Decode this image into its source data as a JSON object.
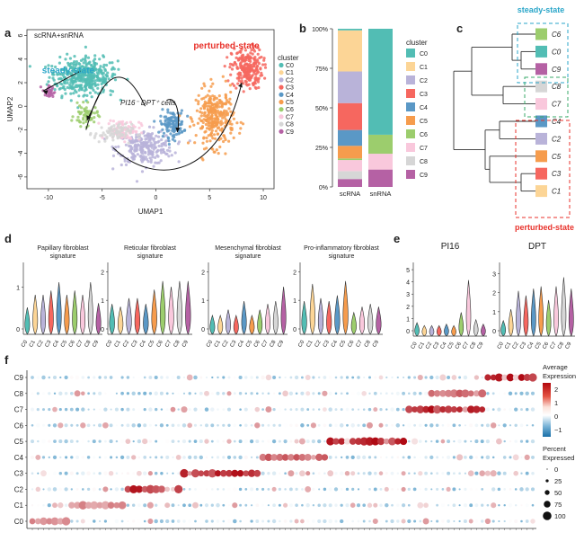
{
  "panels": {
    "a": "a",
    "b": "b",
    "c": "c",
    "d": "d",
    "e": "e",
    "f": "f"
  },
  "colors": {
    "C0": "#52bdb4",
    "C1": "#fcd596",
    "C2": "#b9b3d9",
    "C3": "#f6675f",
    "C4": "#5a98c6",
    "C5": "#f69c4d",
    "C6": "#9ccd6d",
    "C7": "#f9c8dc",
    "C8": "#d6d6d6",
    "C9": "#b561a4"
  },
  "clusters": [
    "C0",
    "C1",
    "C2",
    "C3",
    "C4",
    "C5",
    "C6",
    "C7",
    "C8",
    "C9"
  ],
  "umap": {
    "title": "scRNA+snRNA",
    "steady_label": "steady-state",
    "perturbed_label": "perturbed-state",
    "annotation": "PI16⁻ DPT⁺ cells",
    "xlabel": "UMAP1",
    "ylabel": "UMAP2",
    "xticks": [
      "-10",
      "-5",
      "0",
      "5",
      "10"
    ],
    "yticks": [
      "6",
      "4",
      "2",
      "0",
      "-2",
      "-4",
      "-6"
    ],
    "legend_title": "cluster"
  },
  "tree": {
    "steady_label": "steady-state",
    "perturbed_label": "perturbed-state",
    "order": [
      "C6",
      "C0",
      "C9",
      "C8",
      "C7",
      "C4",
      "C2",
      "C5",
      "C3",
      "C1"
    ]
  },
  "violin_d": {
    "titles": [
      "Papillary fibroblast signature",
      "Reticular fibroblast signature",
      "Mesenchymal fibroblast signature",
      "Pro-inflammatory fibroblast signature"
    ],
    "yticks": [
      [
        "1",
        "0"
      ],
      [
        "2",
        "1",
        "0"
      ],
      [
        "2",
        "1",
        "0"
      ],
      [
        "2",
        "1",
        "0"
      ]
    ]
  },
  "violin_e": {
    "titles": [
      "PI16",
      "DPT"
    ],
    "yticks": [
      [
        "5",
        "4",
        "3",
        "2",
        "1",
        "0"
      ],
      [
        "3",
        "2",
        "1",
        "0"
      ]
    ]
  },
  "dot_legend": {
    "avg_title": "Average Expression",
    "avg_ticks": [
      "2",
      "1",
      "0",
      "−1"
    ],
    "pct_title": "Percent Expressed",
    "pct_ticks": [
      "0",
      "25",
      "50",
      "75",
      "100"
    ]
  },
  "chart_data": [
    {
      "type": "scatter",
      "title": "scRNA+snRNA",
      "xlabel": "UMAP1",
      "ylabel": "UMAP2",
      "xlim": [
        -12,
        11
      ],
      "ylim": [
        -7,
        6.5
      ],
      "series": [
        {
          "name": "C0",
          "x": [
            -7.5,
            -6
          ],
          "y": [
            2.5,
            2.5
          ]
        },
        {
          "name": "C2",
          "x": [
            -1
          ],
          "y": [
            -3.5
          ]
        },
        {
          "name": "C3",
          "x": [
            8.5
          ],
          "y": [
            3.2
          ]
        },
        {
          "name": "C4",
          "x": [
            1.5
          ],
          "y": [
            -1.5
          ]
        },
        {
          "name": "C5",
          "x": [
            5.5
          ],
          "y": [
            -1
          ]
        },
        {
          "name": "C6",
          "x": [
            -6.5
          ],
          "y": [
            -0.8
          ]
        },
        {
          "name": "C7",
          "x": [
            -3
          ],
          "y": [
            -2
          ]
        },
        {
          "name": "C8",
          "x": [
            -4
          ],
          "y": [
            -2.3
          ]
        },
        {
          "name": "C9",
          "x": [
            -10
          ],
          "y": [
            1.2
          ]
        }
      ]
    },
    {
      "type": "bar",
      "categories": [
        "scRNA",
        "snRNA"
      ],
      "ylabel": "",
      "yticks": [
        "0%",
        "25%",
        "50%",
        "75%",
        "100%"
      ],
      "ylim": [
        0,
        100
      ],
      "series": [
        {
          "name": "C0",
          "values": [
            1,
            67
          ]
        },
        {
          "name": "C1",
          "values": [
            26,
            0
          ]
        },
        {
          "name": "C2",
          "values": [
            20,
            0
          ]
        },
        {
          "name": "C3",
          "values": [
            17,
            0
          ]
        },
        {
          "name": "C4",
          "values": [
            10,
            0
          ]
        },
        {
          "name": "C5",
          "values": [
            8,
            0
          ]
        },
        {
          "name": "C6",
          "values": [
            1,
            12
          ]
        },
        {
          "name": "C7",
          "values": [
            7,
            10
          ]
        },
        {
          "name": "C8",
          "values": [
            5,
            0
          ]
        },
        {
          "name": "C9",
          "values": [
            5,
            11
          ]
        }
      ]
    },
    {
      "type": "violin",
      "panel": "d",
      "categories": [
        "C0",
        "C1",
        "C2",
        "C3",
        "C4",
        "C5",
        "C6",
        "C7",
        "C8",
        "C9"
      ],
      "series": [
        {
          "name": "Papillary fibroblast signature",
          "values": [
            0,
            0.3,
            0.3,
            0.4,
            0.6,
            0.3,
            0.4,
            0.3,
            0.6,
            0.1
          ]
        },
        {
          "name": "Reticular fibroblast signature",
          "values": [
            0.4,
            0.3,
            0.6,
            0.6,
            0.4,
            0.9,
            1.2,
            1.0,
            1.2,
            1.2
          ]
        },
        {
          "name": "Mesenchymal fibroblast signature",
          "values": [
            0,
            0,
            0.2,
            0,
            0.5,
            0,
            0.2,
            0.4,
            0.5,
            1.0
          ]
        },
        {
          "name": "Pro-inflammatory fibroblast signature",
          "values": [
            0.5,
            1.1,
            0.6,
            0.5,
            0.7,
            1.2,
            0.1,
            0.3,
            0.4,
            0.3
          ]
        }
      ]
    },
    {
      "type": "violin",
      "panel": "e",
      "categories": [
        "C0",
        "C1",
        "C2",
        "C3",
        "C4",
        "C5",
        "C6",
        "C7",
        "C8",
        "C9"
      ],
      "series": [
        {
          "name": "PI16",
          "values": [
            0.3,
            0.1,
            0.1,
            0.1,
            0.2,
            0.1,
            1.0,
            3.2,
            0.5,
            0.2
          ]
        },
        {
          "name": "DPT",
          "values": [
            0.1,
            0.6,
            1.4,
            1.2,
            1.5,
            1.6,
            1.0,
            1.6,
            2.0,
            1.5
          ]
        }
      ]
    },
    {
      "type": "dot",
      "panel": "f",
      "rows": [
        "C9",
        "C8",
        "C7",
        "C6",
        "C5",
        "C4",
        "C3",
        "C2",
        "C1",
        "C0"
      ],
      "n_genes": 90,
      "legend": {
        "avg_range": [
          -1,
          2.5
        ],
        "pct_range": [
          0,
          100
        ]
      },
      "blocks": [
        {
          "row": "C0",
          "start": 0,
          "end": 6,
          "level": 1.2
        },
        {
          "row": "C1",
          "start": 7,
          "end": 16,
          "level": 1.2
        },
        {
          "row": "C2",
          "start": 17,
          "end": 26,
          "level": 2.2
        },
        {
          "row": "C3",
          "start": 27,
          "end": 40,
          "level": 2.3
        },
        {
          "row": "C4",
          "start": 41,
          "end": 52,
          "level": 1.6
        },
        {
          "row": "C5",
          "start": 53,
          "end": 66,
          "level": 2.4
        },
        {
          "row": "C7",
          "start": 67,
          "end": 80,
          "level": 2.4
        },
        {
          "row": "C8",
          "start": 71,
          "end": 80,
          "level": 1.6
        },
        {
          "row": "C9",
          "start": 81,
          "end": 89,
          "level": 2.5
        }
      ]
    }
  ]
}
